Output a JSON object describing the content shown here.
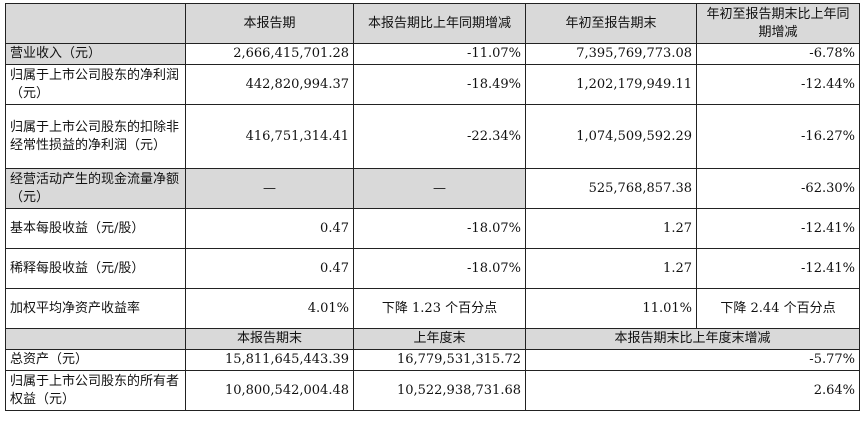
{
  "header": {
    "col1": "本报告期",
    "col2": "本报告期比上年同期增减",
    "col3": "年初至报告期末",
    "col4": "年初至报告期末比上年同期增减"
  },
  "rows": [
    {
      "label": "营业收入（元）",
      "v1": "2,666,415,701.28",
      "v2": "-11.07%",
      "v3": "7,395,769,773.08",
      "v4": "-6.78%"
    },
    {
      "label": "归属于上市公司股东的净利润（元）",
      "v1": "442,820,994.37",
      "v2": "-18.49%",
      "v3": "1,202,179,949.11",
      "v4": "-12.44%"
    },
    {
      "label": "归属于上市公司股东的扣除非经常性损益的净利润（元）",
      "v1": "416,751,314.41",
      "v2": "-22.34%",
      "v3": "1,074,509,592.29",
      "v4": "-16.27%"
    },
    {
      "label": "经营活动产生的现金流量净额（元）",
      "v1": "—",
      "v2": "—",
      "v3": "525,768,857.38",
      "v4": "-62.30%"
    },
    {
      "label": "基本每股收益（元/股）",
      "v1": "0.47",
      "v2": "-18.07%",
      "v3": "1.27",
      "v4": "-12.41%"
    },
    {
      "label": "稀释每股收益（元/股）",
      "v1": "0.47",
      "v2": "-18.07%",
      "v3": "1.27",
      "v4": "-12.41%"
    },
    {
      "label": "加权平均净资产收益率",
      "v1": "4.01%",
      "v2": "下降 1.23 个百分点",
      "v3": "11.01%",
      "v4": "下降 2.44 个百分点"
    }
  ],
  "header2": {
    "col1": "本报告期末",
    "col2": "上年度末",
    "col3": "本报告期末比上年度末增减"
  },
  "rows2": [
    {
      "label": "总资产（元）",
      "v1": "15,811,645,443.39",
      "v2": "16,779,531,315.72",
      "v3": "-5.77%"
    },
    {
      "label": "归属于上市公司股东的所有者权益（元）",
      "v1": "10,800,542,004.48",
      "v2": "10,522,938,731.68",
      "v3": "2.64%"
    }
  ],
  "colors": {
    "header_shade": "#d9d9d9",
    "border": "#222222"
  }
}
